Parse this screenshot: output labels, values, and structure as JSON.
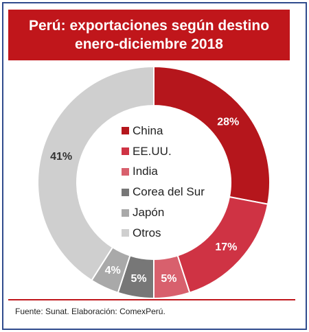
{
  "header": {
    "title_line1": "Perú: exportaciones según destino",
    "title_line2": "enero-diciembre 2018"
  },
  "footer": {
    "source": "Fuente: Sunat. Elaboración: ComexPerú."
  },
  "colors": {
    "accent": "#c0161b",
    "frame": "#2e4a8c"
  },
  "chart_data": {
    "type": "pie",
    "donut": true,
    "title": "Perú: exportaciones según destino enero-diciembre 2018",
    "labels": [
      "China",
      "EE.UU.",
      "India",
      "Corea del Sur",
      "Japón",
      "Otros"
    ],
    "values": [
      28,
      17,
      5,
      5,
      4,
      41
    ],
    "value_labels": [
      "28%",
      "17%",
      "5%",
      "5%",
      "4%",
      "41%"
    ],
    "colors": [
      "#b5161c",
      "#cf3344",
      "#d8606d",
      "#777777",
      "#a9a9a9",
      "#cfcfcf"
    ],
    "legend": "center",
    "start": "top, clockwise"
  }
}
